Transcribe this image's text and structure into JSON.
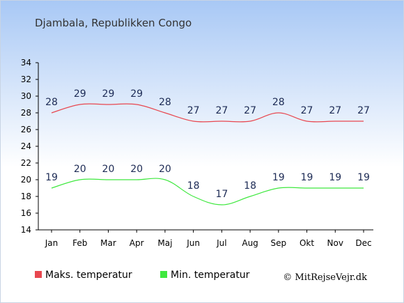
{
  "chart_data": {
    "type": "line",
    "title": "Djambala, Republikken Congo",
    "categories": [
      "Jan",
      "Feb",
      "Mar",
      "Apr",
      "Maj",
      "Jun",
      "Jul",
      "Aug",
      "Sep",
      "Okt",
      "Nov",
      "Dec"
    ],
    "series": [
      {
        "name": "Maks. temperatur",
        "values": [
          28,
          29,
          29,
          29,
          28,
          27,
          27,
          27,
          28,
          27,
          27,
          27
        ],
        "color": "#e8474f"
      },
      {
        "name": "Min. temperatur",
        "values": [
          19,
          20,
          20,
          20,
          20,
          18,
          17,
          18,
          19,
          19,
          19,
          19
        ],
        "color": "#3ee83e"
      }
    ],
    "y_ticks": [
      "14",
      "16",
      "18",
      "20",
      "22",
      "24",
      "26",
      "28",
      "30",
      "32",
      "34"
    ],
    "ylim": [
      14,
      34
    ],
    "grid": false,
    "legend_position": "bottom"
  },
  "copyright": "© MitRejseVejr.dk",
  "colors": {
    "background_top": "#a8c8f5",
    "background_bottom": "#ffffff",
    "axis": "#000000",
    "label": "#1d2b55"
  }
}
